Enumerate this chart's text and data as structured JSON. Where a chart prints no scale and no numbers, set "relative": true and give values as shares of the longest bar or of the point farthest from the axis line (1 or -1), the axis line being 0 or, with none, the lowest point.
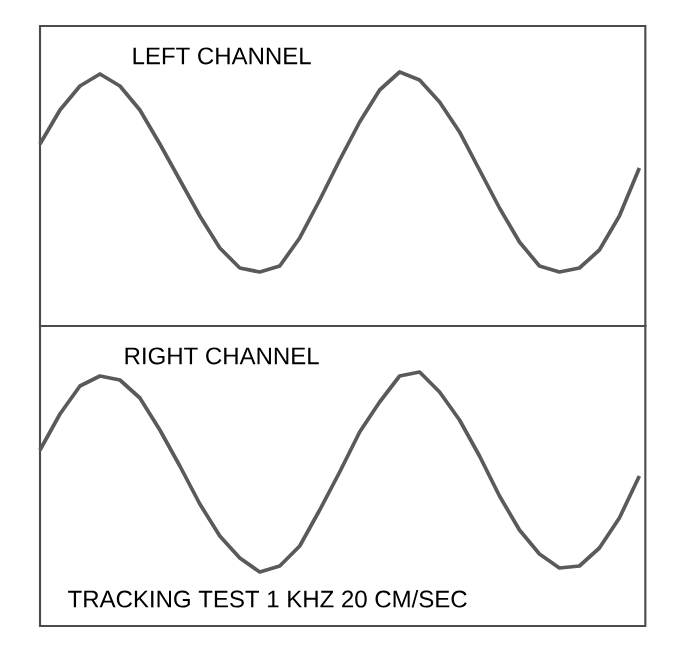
{
  "chart_data": [
    {
      "type": "line",
      "title": "LEFT CHANNEL",
      "relative": true,
      "categories": [
        null,
        null,
        null,
        null,
        null,
        null,
        null,
        null,
        null,
        null,
        null,
        null,
        null,
        null,
        null,
        null,
        null,
        null,
        null,
        null,
        null,
        null,
        null,
        null,
        null,
        null,
        null,
        null,
        null,
        null,
        null
      ],
      "series": [
        {
          "color": "#5a5a5a",
          "values": [
            0.64,
            0.81,
            0.93,
            0.99,
            0.93,
            0.81,
            0.64,
            0.46,
            0.28,
            0.12,
            0.02,
            0,
            0.03,
            0.17,
            0.36,
            0.56,
            0.75,
            0.91,
            1,
            0.96,
            0.85,
            0.7,
            0.51,
            0.32,
            0.15,
            0.03,
            0,
            0.02,
            0.11,
            0.28,
            0.52
          ]
        }
      ]
    },
    {
      "type": "line",
      "title": "RIGHT CHANNEL",
      "relative": true,
      "categories": [
        null,
        null,
        null,
        null,
        null,
        null,
        null,
        null,
        null,
        null,
        null,
        null,
        null,
        null,
        null,
        null,
        null,
        null,
        null,
        null,
        null,
        null,
        null,
        null,
        null,
        null,
        null,
        null,
        null,
        null,
        null
      ],
      "series": [
        {
          "color": "#5a5a5a",
          "values": [
            0.61,
            0.79,
            0.93,
            0.98,
            0.96,
            0.87,
            0.71,
            0.53,
            0.34,
            0.18,
            0.07,
            0,
            0.03,
            0.13,
            0.31,
            0.5,
            0.7,
            0.85,
            0.98,
            1,
            0.9,
            0.76,
            0.58,
            0.38,
            0.21,
            0.09,
            0.02,
            0.03,
            0.12,
            0.27,
            0.48
          ]
        }
      ],
      "annotations": [
        "TRACKING TEST 1 KHZ 20 CM/SEC"
      ]
    }
  ]
}
